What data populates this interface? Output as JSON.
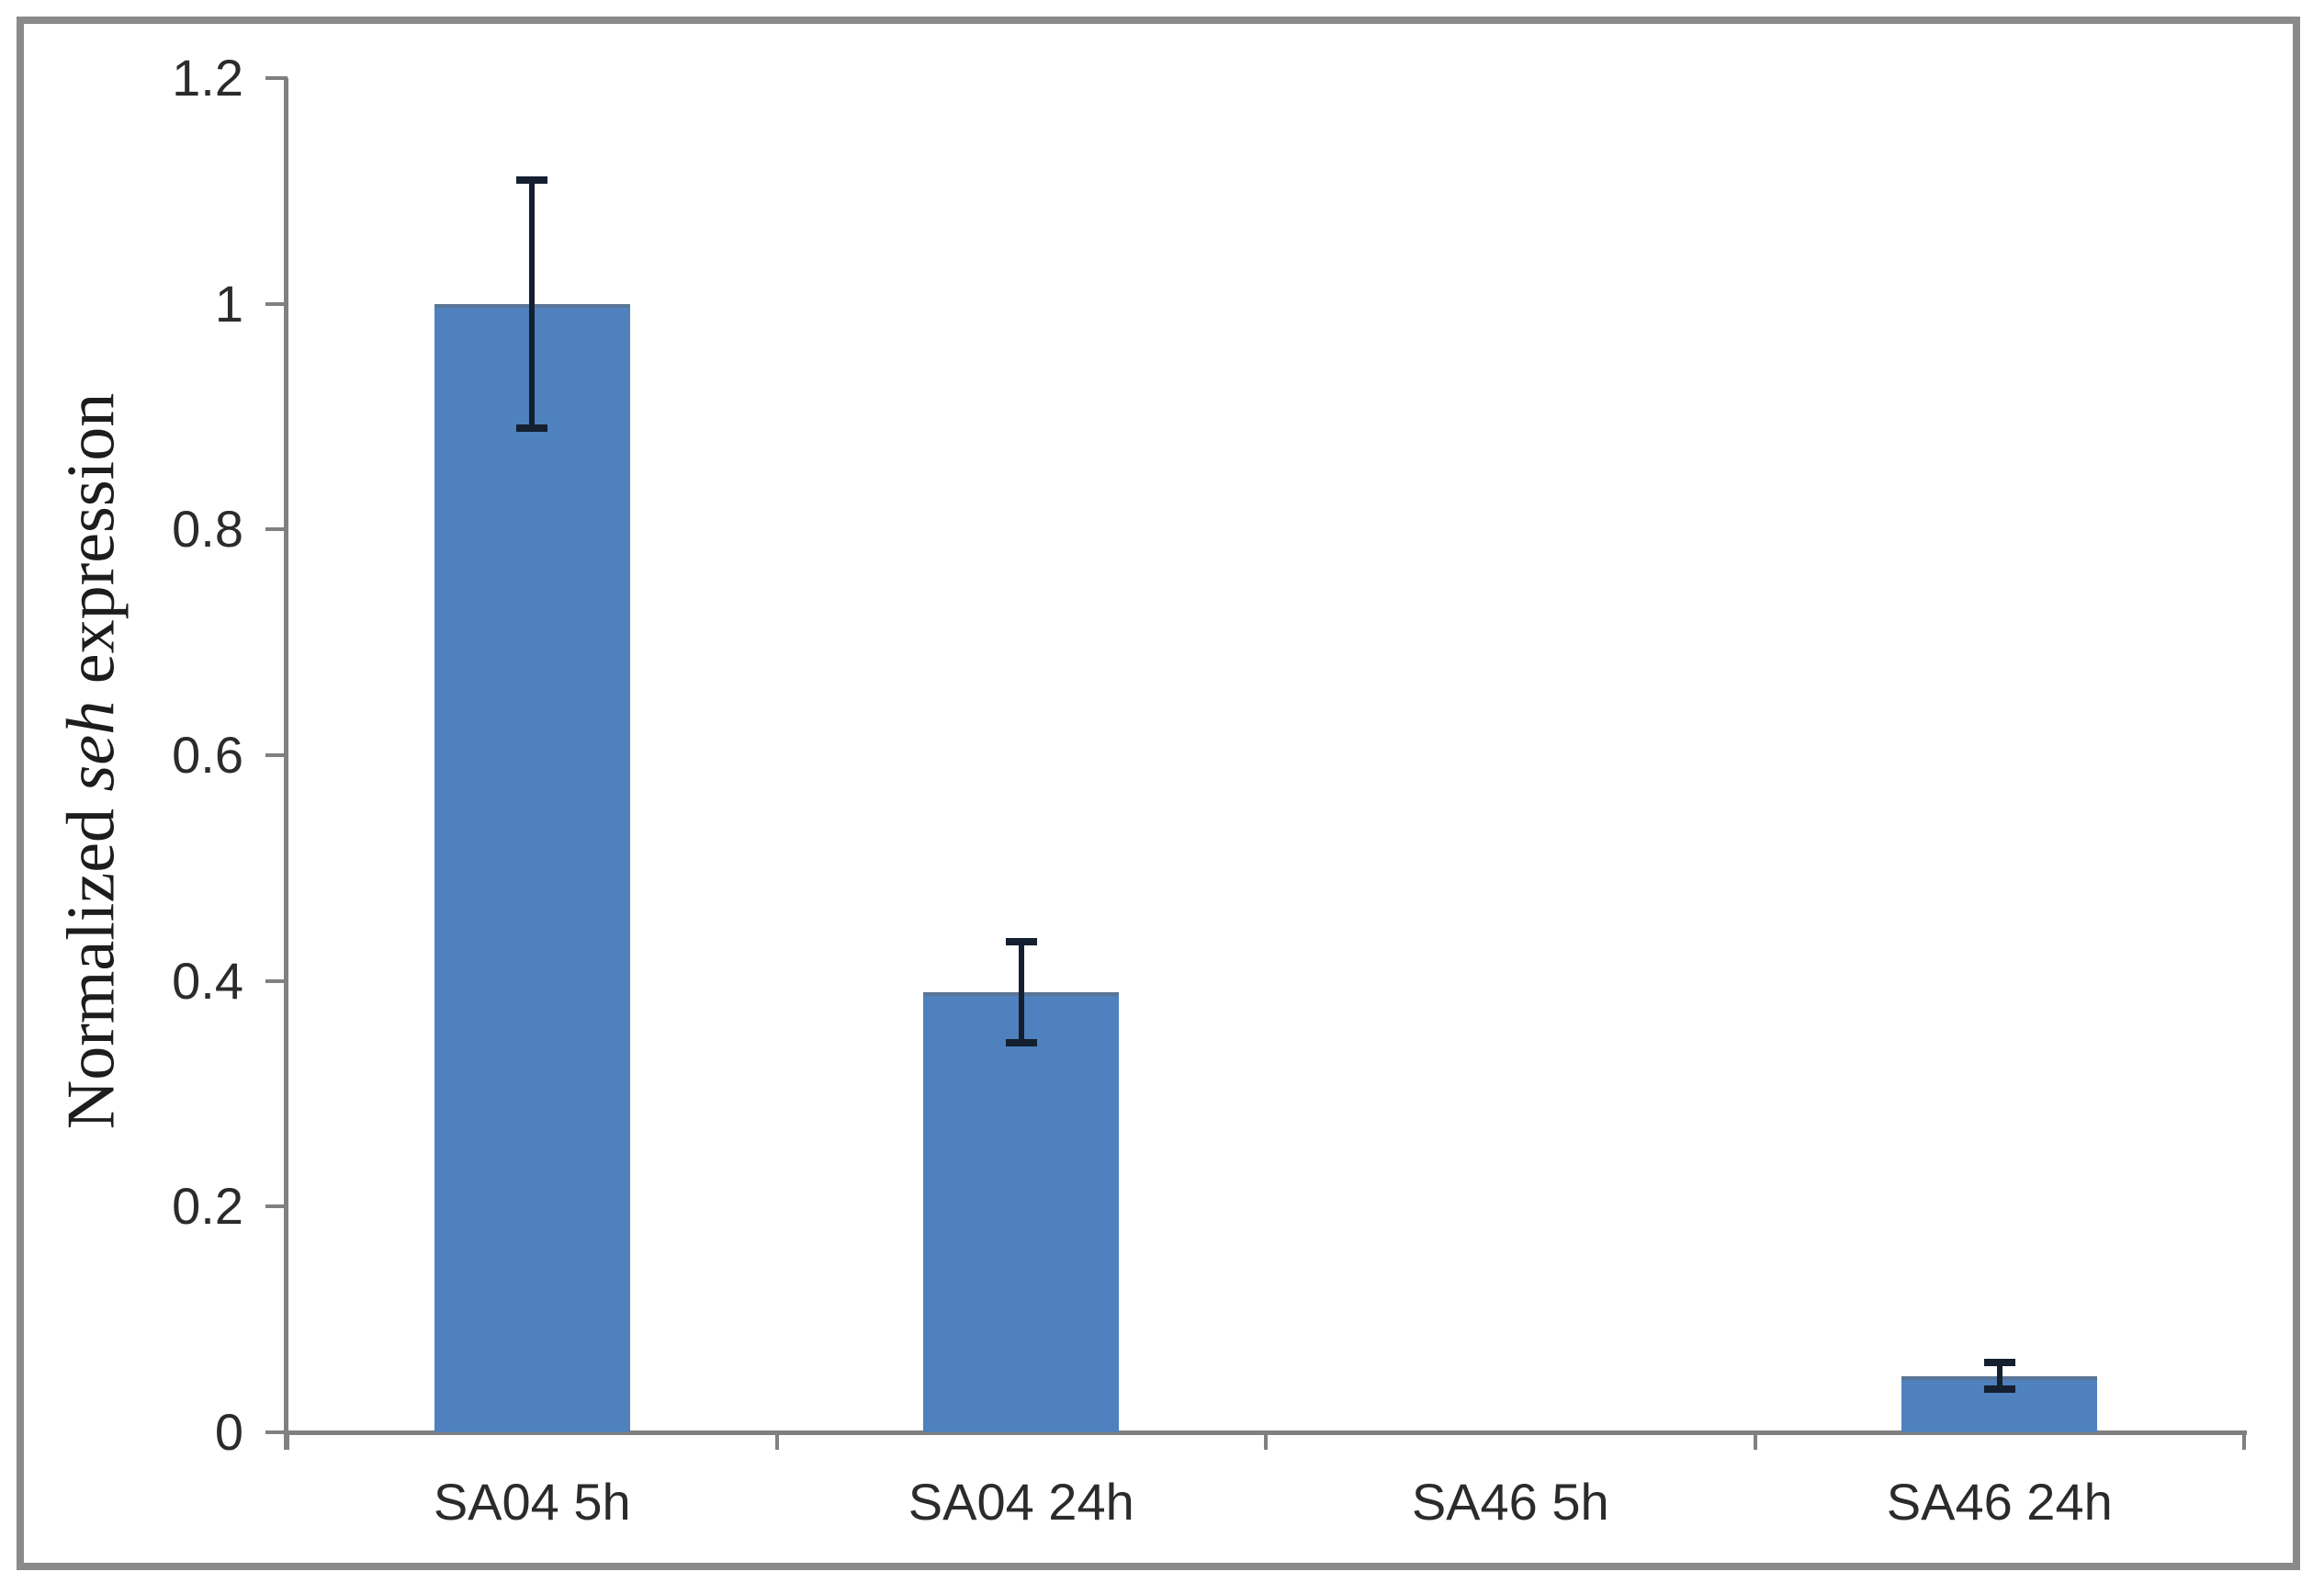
{
  "figure": {
    "background_color": "#ffffff",
    "frame_color": "#8a8a8a"
  },
  "chart_data": {
    "type": "bar",
    "title": "",
    "categories": [
      "SA04 5h",
      "SA04 24h",
      "SA46 5h",
      "SA46 24h"
    ],
    "series": [
      {
        "name": "Normalized seh expression",
        "values": [
          1.0,
          0.39,
          0,
          0.05
        ],
        "errors": [
          0.11,
          0.045,
          0,
          0.012
        ]
      }
    ],
    "xlabel": "",
    "ylabel": "Normalized seh expression",
    "ylabel_parts": {
      "prefix": "Normalized ",
      "italic": "seh",
      "suffix": " expression"
    },
    "ylim": [
      0,
      1.2
    ],
    "ytick_step": 0.2,
    "ytick_labels": [
      "0",
      "0.2",
      "0.4",
      "0.6",
      "0.8",
      "1",
      "1.2"
    ],
    "grid": false,
    "legend": false,
    "bar_color": "#4e81bd",
    "bar_edge_color": "#5a7596",
    "error_bar_color": "#141f30",
    "axis_color": "#808080",
    "text_color": "#2b2b2b"
  }
}
